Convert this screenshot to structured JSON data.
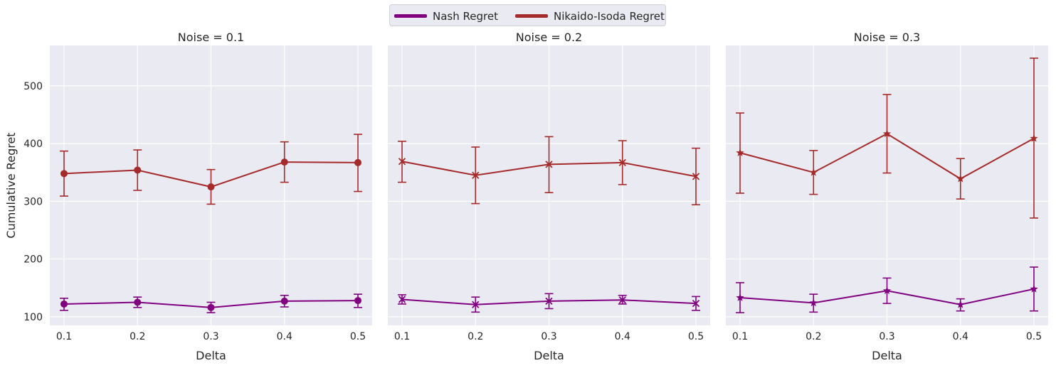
{
  "legend": {
    "nash_label": "Nash Regret",
    "ni_label": "Nikaido-Isoda Regret"
  },
  "colors": {
    "nash": "#800080",
    "nikaido_isoda": "#a52a2a",
    "panel_bg": "#eaeaf2",
    "grid": "#ffffff",
    "text": "#262626"
  },
  "chart_data": [
    {
      "type": "line",
      "title": "Noise = 0.1",
      "xlabel": "Delta",
      "ylabel": "Cumulative Regret",
      "marker": "circle",
      "x": [
        0.1,
        0.2,
        0.3,
        0.4,
        0.5
      ],
      "xticks": [
        "0.1",
        "0.2",
        "0.3",
        "0.4",
        "0.5"
      ],
      "ylim": [
        85,
        570
      ],
      "yticks": [
        100,
        200,
        300,
        400,
        500
      ],
      "grid": true,
      "series": [
        {
          "name": "Nash Regret",
          "color": "#800080",
          "values": [
            122,
            125,
            116,
            127,
            128
          ],
          "err_low": [
            111,
            116,
            107,
            117,
            116
          ],
          "err_high": [
            132,
            134,
            125,
            137,
            139
          ]
        },
        {
          "name": "Nikaido-Isoda Regret",
          "color": "#a52a2a",
          "values": [
            348,
            354,
            325,
            368,
            367
          ],
          "err_low": [
            309,
            319,
            295,
            333,
            317
          ],
          "err_high": [
            387,
            389,
            355,
            403,
            416
          ]
        }
      ]
    },
    {
      "type": "line",
      "title": "Noise = 0.2",
      "xlabel": "Delta",
      "ylabel": "",
      "marker": "x",
      "x": [
        0.1,
        0.2,
        0.3,
        0.4,
        0.5
      ],
      "xticks": [
        "0.1",
        "0.2",
        "0.3",
        "0.4",
        "0.5"
      ],
      "ylim": [
        85,
        570
      ],
      "yticks": [
        100,
        200,
        300,
        400,
        500
      ],
      "grid": true,
      "series": [
        {
          "name": "Nash Regret",
          "color": "#800080",
          "values": [
            130,
            121,
            127,
            129,
            123
          ],
          "err_low": [
            122,
            108,
            114,
            122,
            111
          ],
          "err_high": [
            138,
            134,
            140,
            137,
            135
          ]
        },
        {
          "name": "Nikaido-Isoda Regret",
          "color": "#a52a2a",
          "values": [
            369,
            345,
            364,
            367,
            343
          ],
          "err_low": [
            333,
            296,
            315,
            329,
            294
          ],
          "err_high": [
            404,
            394,
            412,
            405,
            392
          ]
        }
      ]
    },
    {
      "type": "line",
      "title": "Noise = 0.3",
      "xlabel": "Delta",
      "ylabel": "",
      "marker": "star",
      "x": [
        0.1,
        0.2,
        0.3,
        0.4,
        0.5
      ],
      "xticks": [
        "0.1",
        "0.2",
        "0.3",
        "0.4",
        "0.5"
      ],
      "ylim": [
        85,
        570
      ],
      "yticks": [
        100,
        200,
        300,
        400,
        500
      ],
      "grid": true,
      "series": [
        {
          "name": "Nash Regret",
          "color": "#800080",
          "values": [
            133,
            124,
            145,
            121,
            148
          ],
          "err_low": [
            107,
            108,
            123,
            110,
            110
          ],
          "err_high": [
            159,
            139,
            167,
            131,
            186
          ]
        },
        {
          "name": "Nikaido-Isoda Regret",
          "color": "#a52a2a",
          "values": [
            384,
            350,
            417,
            339,
            409
          ],
          "err_low": [
            314,
            312,
            349,
            304,
            271
          ],
          "err_high": [
            453,
            388,
            485,
            374,
            548
          ]
        }
      ]
    }
  ]
}
